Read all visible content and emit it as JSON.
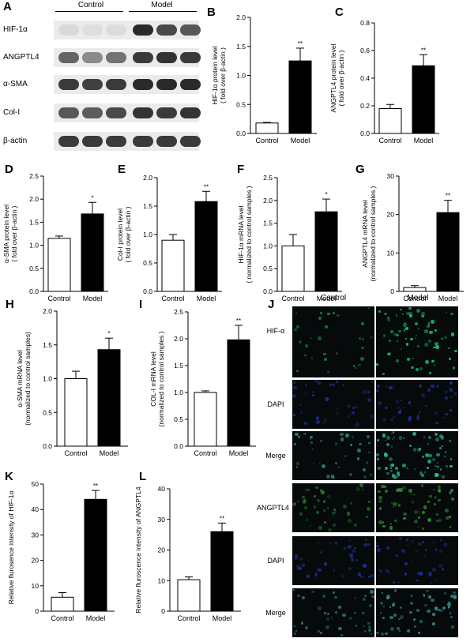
{
  "panel_a": {
    "letter": "A",
    "groups": [
      "Control",
      "Model"
    ],
    "blots": [
      {
        "label": "HIF-1α",
        "intensity": [
          0.15,
          0.1,
          0.12,
          0.95,
          0.85,
          0.8
        ]
      },
      {
        "label": "ANGPTL4",
        "intensity": [
          0.75,
          0.6,
          0.7,
          0.9,
          0.92,
          0.9
        ]
      },
      {
        "label": "α-SMA",
        "intensity": [
          0.9,
          0.88,
          0.9,
          0.95,
          0.95,
          0.95
        ]
      },
      {
        "label": "Col-I",
        "intensity": [
          0.8,
          0.78,
          0.85,
          0.92,
          0.9,
          0.92
        ]
      },
      {
        "label": "β-actin",
        "intensity": [
          0.9,
          0.9,
          0.9,
          0.9,
          0.9,
          0.9
        ]
      }
    ]
  },
  "chart_data": [
    {
      "letter": "B",
      "type": "bar",
      "categories": [
        "Control",
        "Model"
      ],
      "values": [
        0.18,
        1.25
      ],
      "errors": [
        0.01,
        0.22
      ],
      "ylim": [
        0,
        2.0
      ],
      "ticks": [
        "0.0",
        "0.5",
        "1.0",
        "1.5",
        "2.0"
      ],
      "ylabel": [
        "HIF-1α protein level",
        "( fold over β-actin )"
      ],
      "sig": "**"
    },
    {
      "letter": "C",
      "type": "bar",
      "categories": [
        "Control",
        "Model"
      ],
      "values": [
        0.18,
        0.49
      ],
      "errors": [
        0.03,
        0.08
      ],
      "ylim": [
        0,
        0.8
      ],
      "ticks": [
        "0.0",
        "0.2",
        "0.4",
        "0.6",
        "0.8"
      ],
      "ylabel": [
        "ANGPTL4 protein level",
        "( fold over β-actin )"
      ],
      "sig": "**"
    },
    {
      "letter": "D",
      "type": "bar",
      "categories": [
        "Control",
        "Model"
      ],
      "values": [
        1.15,
        1.68
      ],
      "errors": [
        0.05,
        0.25
      ],
      "ylim": [
        0,
        2.5
      ],
      "ticks": [
        "0.0",
        "0.5",
        "1.0",
        "1.5",
        "2.0",
        "2.5"
      ],
      "ylabel": [
        "α-SMA protein level",
        "( fold over β-actin )"
      ],
      "sig": "*"
    },
    {
      "letter": "E",
      "type": "bar",
      "categories": [
        "Control",
        "Model"
      ],
      "values": [
        0.9,
        1.58
      ],
      "errors": [
        0.1,
        0.18
      ],
      "ylim": [
        0,
        2.0
      ],
      "ticks": [
        "0.0",
        "0.5",
        "1.0",
        "1.5",
        "2.0"
      ],
      "ylabel": [
        "Col-I protein level",
        "( fold over β-actin )"
      ],
      "sig": "**"
    },
    {
      "letter": "F",
      "type": "bar",
      "categories": [
        "Control",
        "Model"
      ],
      "values": [
        1.0,
        1.75
      ],
      "errors": [
        0.25,
        0.28
      ],
      "ylim": [
        0,
        2.5
      ],
      "ticks": [
        "0.0",
        "0.5",
        "1.0",
        "1.5",
        "2.0",
        "2.5"
      ],
      "ylabel": [
        "HIF-1α mRNA level",
        "( normalized to control samples )"
      ],
      "sig": "*"
    },
    {
      "letter": "G",
      "type": "bar",
      "categories": [
        "Control",
        "Model"
      ],
      "values": [
        1.0,
        20.5
      ],
      "errors": [
        0.5,
        3.2
      ],
      "ylim": [
        0,
        30
      ],
      "ticks": [
        "0",
        "10",
        "20",
        "30"
      ],
      "ylabel": [
        "ANGPTL4 mRNA level",
        "(normalized to control samples )"
      ],
      "sig": "**"
    },
    {
      "letter": "H",
      "type": "bar",
      "categories": [
        "Control",
        "Model"
      ],
      "values": [
        1.0,
        1.43
      ],
      "errors": [
        0.11,
        0.17
      ],
      "ylim": [
        0,
        2.0
      ],
      "ticks": [
        "0.0",
        "0.5",
        "1.0",
        "1.5",
        "2.0"
      ],
      "ylabel": [
        "α-SMA mRNA level",
        "(normalized to control samples)"
      ],
      "sig": "*"
    },
    {
      "letter": "I",
      "type": "bar",
      "categories": [
        "Control",
        "Model"
      ],
      "values": [
        1.0,
        1.98
      ],
      "errors": [
        0.03,
        0.27
      ],
      "ylim": [
        0,
        2.5
      ],
      "ticks": [
        "0.0",
        "0.5",
        "1.0",
        "1.5",
        "2.0",
        "2.5"
      ],
      "ylabel": [
        "COL-I mRNA level",
        "(normalized to control samples )"
      ],
      "sig": "**"
    },
    {
      "letter": "K",
      "type": "bar",
      "categories": [
        "Control",
        "Model"
      ],
      "values": [
        5.5,
        44
      ],
      "errors": [
        1.8,
        3.5
      ],
      "ylim": [
        0,
        50
      ],
      "ticks": [
        "0",
        "10",
        "20",
        "30",
        "40",
        "50"
      ],
      "ylabel": [
        "Relative flurosence intensity of HIF-1α"
      ],
      "sig": "**"
    },
    {
      "letter": "L",
      "type": "bar",
      "categories": [
        "Control",
        "Model"
      ],
      "values": [
        10.3,
        26
      ],
      "errors": [
        0.9,
        2.8
      ],
      "ylim": [
        0,
        40
      ],
      "ticks": [
        "0",
        "10",
        "20",
        "30",
        "40"
      ],
      "ylabel": [
        "Relative fluroscence intensity of ANGPTL4"
      ],
      "sig": "**"
    }
  ],
  "panel_j": {
    "letter": "J",
    "columns": [
      "Control",
      "Model"
    ],
    "rows": [
      {
        "label": "HIF-α",
        "stain": "green-nuclear",
        "color": "#19c37a",
        "density": [
          0.35,
          1.0
        ]
      },
      {
        "label": "DAPI",
        "stain": "blue",
        "color": "#2a3cc8",
        "density": [
          0.5,
          0.5
        ]
      },
      {
        "label": "Merge",
        "stain": "merge",
        "color": "#2fb8a0",
        "density": [
          0.45,
          1.0
        ]
      },
      {
        "label": "ANGPTL4",
        "stain": "green",
        "color": "#2e9a3a",
        "density": [
          0.55,
          0.8
        ]
      },
      {
        "label": "DAPI",
        "stain": "blue",
        "color": "#2a3cc8",
        "density": [
          0.5,
          0.5
        ]
      },
      {
        "label": "Merge",
        "stain": "merge",
        "color": "#3a9aa0",
        "density": [
          0.55,
          0.8
        ]
      }
    ]
  }
}
